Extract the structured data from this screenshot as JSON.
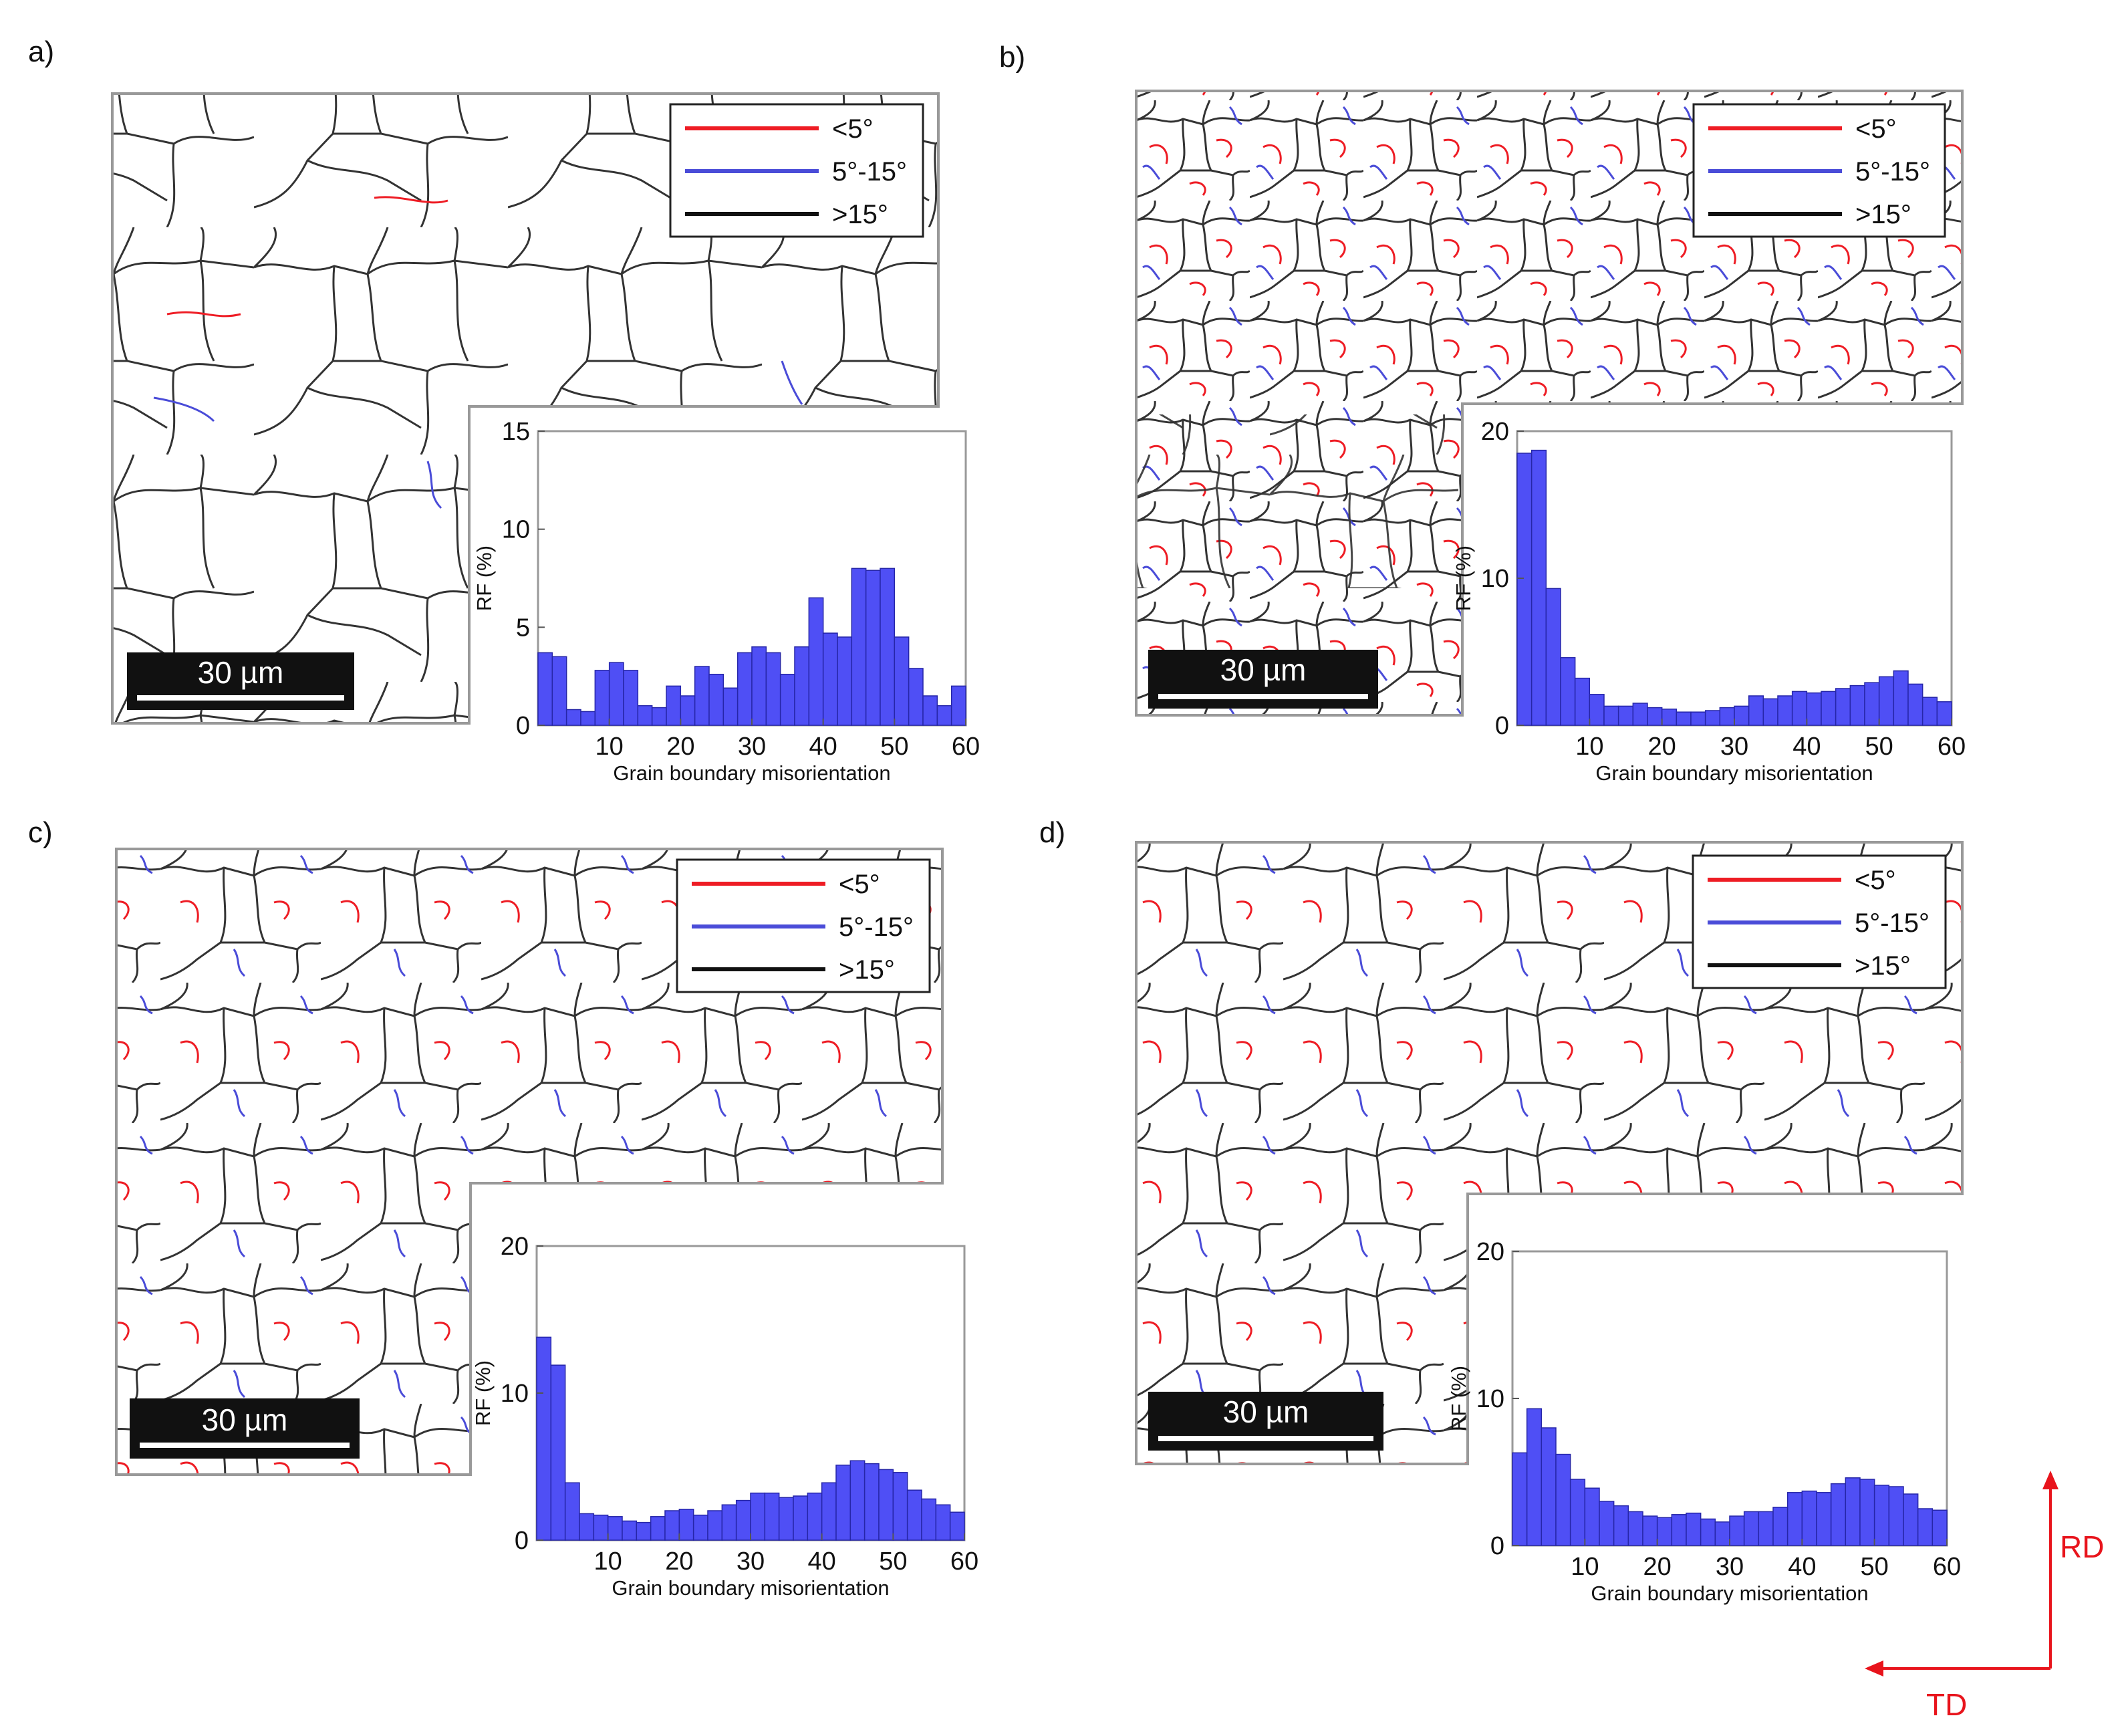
{
  "figure": {
    "legend": [
      {
        "label": "<5°",
        "color": "#ee1c24"
      },
      {
        "label": "5°-15°",
        "color": "#4a4cd8"
      },
      {
        "label": ">15°",
        "color": "#111111"
      }
    ],
    "scale_bar": "30 µm",
    "direction_labels": {
      "vertical": "RD",
      "horizontal": "TD"
    },
    "colors": {
      "bar": "#4f4ff5",
      "bar_edge": "#2626a8",
      "map_black": "#333333",
      "map_red": "#ee1c24",
      "map_blue": "#4a4cd8",
      "arrow": "#e8141c"
    }
  },
  "chart_data": [
    {
      "panel": "a)",
      "type": "bar",
      "xlabel": "Grain boundary misorientation",
      "ylabel": "RF (%)",
      "xlim": [
        0,
        60
      ],
      "ylim": [
        0,
        15
      ],
      "xticks": [
        10,
        20,
        30,
        40,
        50,
        60
      ],
      "yticks": [
        0,
        5,
        10,
        15
      ],
      "bin_width": 2,
      "values": [
        3.7,
        3.5,
        0.8,
        0.7,
        2.8,
        3.2,
        2.8,
        1.0,
        0.9,
        2.0,
        1.5,
        3.0,
        2.6,
        1.9,
        3.7,
        4.0,
        3.7,
        2.6,
        4.0,
        6.5,
        4.7,
        4.5,
        8.0,
        7.9,
        8.0,
        4.5,
        2.9,
        1.5,
        1.0,
        2.0
      ]
    },
    {
      "panel": "b)",
      "type": "bar",
      "xlabel": "Grain boundary misorientation",
      "ylabel": "RF (%)",
      "xlim": [
        0,
        60
      ],
      "ylim": [
        0,
        20
      ],
      "xticks": [
        10,
        20,
        30,
        40,
        50,
        60
      ],
      "yticks": [
        0,
        10,
        20
      ],
      "bin_width": 2,
      "values": [
        18.5,
        18.7,
        9.3,
        4.6,
        3.2,
        2.1,
        1.3,
        1.3,
        1.5,
        1.2,
        1.1,
        0.9,
        0.9,
        1.0,
        1.2,
        1.3,
        2.0,
        1.8,
        2.0,
        2.3,
        2.2,
        2.3,
        2.5,
        2.7,
        2.9,
        3.3,
        3.7,
        2.8,
        1.9,
        1.6
      ]
    },
    {
      "panel": "c)",
      "type": "bar",
      "xlabel": "Grain boundary misorientation",
      "ylabel": "RF (%)",
      "xlim": [
        0,
        60
      ],
      "ylim": [
        0,
        20
      ],
      "xticks": [
        10,
        20,
        30,
        40,
        50,
        60
      ],
      "yticks": [
        0,
        10,
        20
      ],
      "bin_width": 2,
      "values": [
        13.8,
        11.9,
        3.9,
        1.8,
        1.7,
        1.6,
        1.3,
        1.2,
        1.6,
        2.0,
        2.1,
        1.7,
        2.0,
        2.4,
        2.7,
        3.2,
        3.2,
        2.9,
        3.0,
        3.2,
        3.9,
        5.1,
        5.4,
        5.2,
        4.8,
        4.6,
        3.4,
        2.8,
        2.4,
        1.9
      ]
    },
    {
      "panel": "d)",
      "type": "bar",
      "xlabel": "Grain boundary misorientation",
      "ylabel": "RF (%)",
      "xlim": [
        0,
        60
      ],
      "ylim": [
        0,
        20
      ],
      "xticks": [
        10,
        20,
        30,
        40,
        50,
        60
      ],
      "yticks": [
        0,
        10,
        20
      ],
      "bin_width": 2,
      "values": [
        6.3,
        9.3,
        8.0,
        6.2,
        4.5,
        3.9,
        3.0,
        2.7,
        2.3,
        2.0,
        1.9,
        2.1,
        2.2,
        1.8,
        1.6,
        2.0,
        2.3,
        2.3,
        2.6,
        3.6,
        3.7,
        3.6,
        4.2,
        4.6,
        4.5,
        4.1,
        4.0,
        3.5,
        2.5,
        2.4
      ]
    }
  ]
}
